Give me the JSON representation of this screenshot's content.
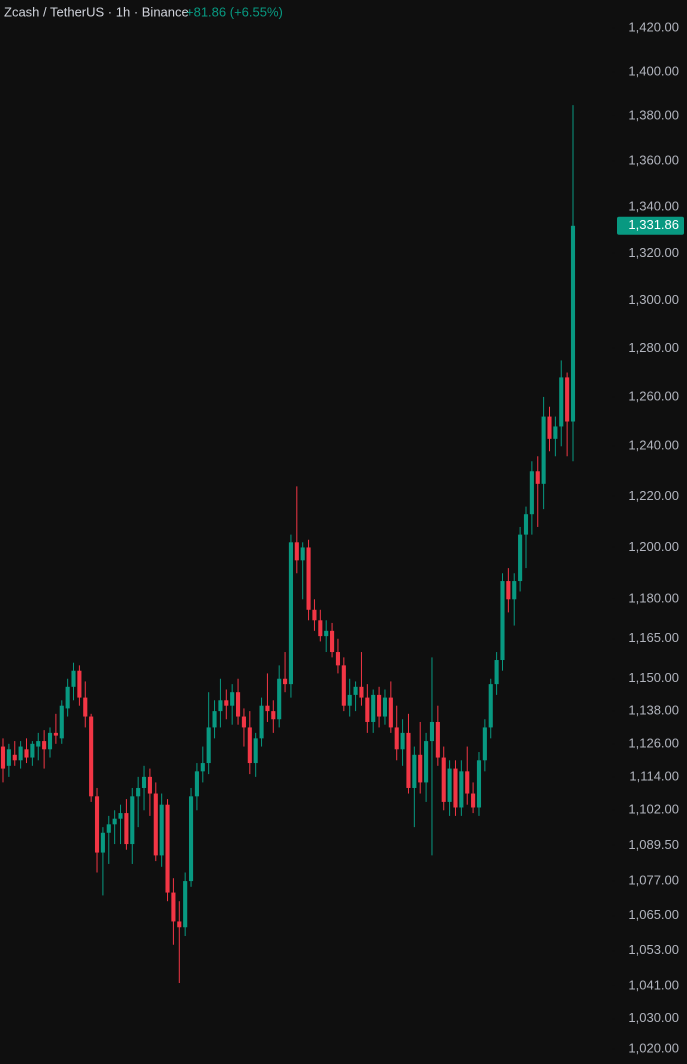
{
  "chart_data": {
    "type": "candlestick",
    "title": "Zcash / TetherUS · 1h · Binance",
    "change": "+81.86 (+6.55%)",
    "log_scale": true,
    "up_color": "#089981",
    "down_color": "#f23645",
    "ylim": [
      1015,
      1433
    ],
    "yticks": [
      {
        "value": 1420,
        "label": "1,420.00"
      },
      {
        "value": 1400,
        "label": "1,400.00"
      },
      {
        "value": 1380,
        "label": "1,380.00"
      },
      {
        "value": 1360,
        "label": "1,360.00"
      },
      {
        "value": 1340,
        "label": "1,340.00"
      },
      {
        "value": 1320,
        "label": "1,320.00"
      },
      {
        "value": 1300,
        "label": "1,300.00"
      },
      {
        "value": 1280,
        "label": "1,280.00"
      },
      {
        "value": 1260,
        "label": "1,260.00"
      },
      {
        "value": 1240,
        "label": "1,240.00"
      },
      {
        "value": 1220,
        "label": "1,220.00"
      },
      {
        "value": 1200,
        "label": "1,200.00"
      },
      {
        "value": 1180,
        "label": "1,180.00"
      },
      {
        "value": 1165,
        "label": "1,165.00"
      },
      {
        "value": 1150,
        "label": "1,150.00"
      },
      {
        "value": 1138,
        "label": "1,138.00"
      },
      {
        "value": 1126,
        "label": "1,126.00"
      },
      {
        "value": 1114,
        "label": "1,114.00"
      },
      {
        "value": 1102,
        "label": "1,102.00"
      },
      {
        "value": 1089.5,
        "label": "1,089.50"
      },
      {
        "value": 1077,
        "label": "1,077.00"
      },
      {
        "value": 1065,
        "label": "1,065.00"
      },
      {
        "value": 1053,
        "label": "1,053.00"
      },
      {
        "value": 1041,
        "label": "1,041.00"
      },
      {
        "value": 1030,
        "label": "1,030.00"
      },
      {
        "value": 1020,
        "label": "1,020.00"
      }
    ],
    "last_price": {
      "value": 1331.86,
      "label": "1,331.86"
    },
    "open": [
      1125,
      1118,
      1122,
      1120,
      1124,
      1121,
      1125,
      1127,
      1124,
      1130,
      1128,
      1139,
      1147,
      1153,
      1143,
      1136,
      1107,
      1087,
      1094,
      1097,
      1099,
      1101,
      1090,
      1107,
      1110,
      1114,
      1108,
      1086,
      1104,
      1073,
      1063,
      1061,
      1077,
      1107,
      1116,
      1119,
      1132,
      1138,
      1142,
      1140,
      1145,
      1136,
      1132,
      1119,
      1128,
      1140,
      1138,
      1135,
      1150,
      1148,
      1202,
      1195,
      1200,
      1176,
      1172,
      1166,
      1168,
      1160,
      1155,
      1140,
      1144,
      1147,
      1143,
      1134,
      1144,
      1136,
      1143,
      1132,
      1124,
      1130,
      1110,
      1122,
      1112,
      1127,
      1134,
      1121,
      1105,
      1117,
      1103,
      1116,
      1108,
      1103,
      1120,
      1132,
      1148,
      1157,
      1187,
      1180,
      1187,
      1205,
      1213,
      1230,
      1225,
      1252,
      1243,
      1248,
      1268,
      1250
    ],
    "high": [
      1128,
      1126,
      1127,
      1127,
      1128,
      1127,
      1130,
      1131,
      1132,
      1137,
      1142,
      1150,
      1156,
      1155,
      1149,
      1137,
      1110,
      1096,
      1100,
      1102,
      1104,
      1106,
      1110,
      1114,
      1118,
      1117,
      1112,
      1108,
      1106,
      1078,
      1070,
      1080,
      1110,
      1119,
      1125,
      1145,
      1142,
      1150,
      1146,
      1148,
      1150,
      1139,
      1138,
      1130,
      1143,
      1152,
      1142,
      1155,
      1160,
      1205,
      1224,
      1202,
      1203,
      1180,
      1176,
      1172,
      1171,
      1165,
      1158,
      1150,
      1149,
      1160,
      1148,
      1146,
      1147,
      1146,
      1149,
      1140,
      1135,
      1137,
      1125,
      1134,
      1130,
      1158,
      1140,
      1125,
      1120,
      1120,
      1120,
      1125,
      1112,
      1123,
      1135,
      1150,
      1160,
      1190,
      1192,
      1190,
      1208,
      1216,
      1234,
      1236,
      1260,
      1256,
      1252,
      1275,
      1270,
      1385
    ],
    "low": [
      1112,
      1114,
      1118,
      1117,
      1119,
      1118,
      1120,
      1117,
      1121,
      1126,
      1126,
      1136,
      1142,
      1140,
      1132,
      1105,
      1080,
      1072,
      1083,
      1090,
      1090,
      1088,
      1083,
      1096,
      1102,
      1100,
      1084,
      1082,
      1070,
      1055,
      1042,
      1058,
      1075,
      1102,
      1112,
      1115,
      1128,
      1132,
      1135,
      1133,
      1133,
      1125,
      1115,
      1114,
      1125,
      1134,
      1130,
      1132,
      1145,
      1143,
      1190,
      1180,
      1172,
      1168,
      1164,
      1160,
      1158,
      1152,
      1138,
      1136,
      1138,
      1140,
      1130,
      1130,
      1132,
      1133,
      1130,
      1120,
      1118,
      1108,
      1096,
      1108,
      1105,
      1086,
      1118,
      1102,
      1100,
      1100,
      1100,
      1104,
      1101,
      1100,
      1116,
      1128,
      1144,
      1153,
      1175,
      1170,
      1183,
      1192,
      1205,
      1208,
      1215,
      1238,
      1236,
      1240,
      1236,
      1234
    ],
    "close": [
      1117,
      1124,
      1120,
      1125,
      1121,
      1126,
      1127,
      1124,
      1130,
      1129,
      1140,
      1147,
      1153,
      1143,
      1136,
      1107,
      1087,
      1094,
      1097,
      1099,
      1101,
      1090,
      1107,
      1110,
      1114,
      1108,
      1086,
      1104,
      1073,
      1063,
      1061,
      1077,
      1107,
      1116,
      1119,
      1132,
      1138,
      1142,
      1140,
      1145,
      1136,
      1132,
      1119,
      1128,
      1140,
      1138,
      1135,
      1150,
      1148,
      1202,
      1195,
      1200,
      1176,
      1172,
      1166,
      1168,
      1160,
      1155,
      1140,
      1144,
      1147,
      1143,
      1134,
      1144,
      1136,
      1143,
      1132,
      1124,
      1130,
      1110,
      1122,
      1112,
      1127,
      1134,
      1121,
      1105,
      1117,
      1103,
      1116,
      1108,
      1103,
      1120,
      1132,
      1148,
      1157,
      1187,
      1180,
      1187,
      1205,
      1213,
      1230,
      1225,
      1252,
      1243,
      1248,
      1268,
      1250,
      1331.86
    ]
  }
}
